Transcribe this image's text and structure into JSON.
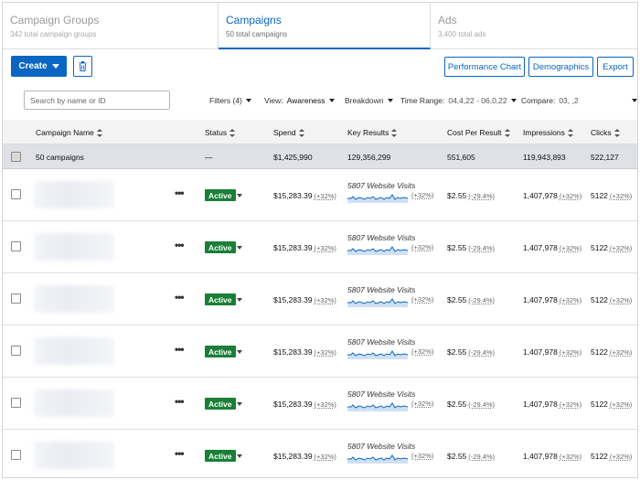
{
  "tabs": [
    {
      "title": "Campaign Groups",
      "subtitle": "342 total campaign groups"
    },
    {
      "title": "Campaigns",
      "subtitle": "50 total campaigns"
    },
    {
      "title": "Ads",
      "subtitle": "3,400 total ads"
    }
  ],
  "toolbar": {
    "create_label": "Create",
    "performance_chart_label": "Performance Chart",
    "demographics_label": "Demographics",
    "export_label": "Export"
  },
  "filters": {
    "search_placeholder": "Search by name or ID",
    "filters_label": "Filters (4)",
    "view_label": "View:",
    "view_value": "Awareness",
    "breakdown_label": "Breakdown",
    "time_range_label": "Time Range:",
    "time_range_value": "04,4,22 - 06,0,22",
    "compare_label": "Compare:",
    "compare_value": "03, ,2"
  },
  "columns": {
    "name": "Campaign Name",
    "status": "Status",
    "spend": "Spend",
    "key_results": "Key Results",
    "cost_per_result": "Cost Per Result",
    "impressions": "Impressions",
    "clicks": "Clicks"
  },
  "totals": {
    "name": "50 campaigns",
    "status": "—",
    "spend": "$1,425,990",
    "key_results": "129,356,299",
    "cost_per_result": "551,605",
    "impressions": "119,943,893",
    "clicks": "522,127"
  },
  "rows": [
    {
      "status": "Active",
      "spend": "$15,283.39",
      "spend_change": "(+32%)",
      "key_results": "5807 Website Visits",
      "key_results_change": "(+32%)",
      "cpr": "$2.55",
      "cpr_change": "(-29.4%)",
      "impressions": "1,407,978",
      "impressions_change": "(+32%)",
      "clicks": "5122",
      "clicks_change": "(+32%)"
    },
    {
      "status": "Active",
      "spend": "$15,283.39",
      "spend_change": "(+32%)",
      "key_results": "5807 Website Visits",
      "key_results_change": "(+32%)",
      "cpr": "$2.55",
      "cpr_change": "(-29.4%)",
      "impressions": "1,407,978",
      "impressions_change": "(+32%)",
      "clicks": "5122",
      "clicks_change": "(+32%)"
    },
    {
      "status": "Active",
      "spend": "$15,283.39",
      "spend_change": "(+32%)",
      "key_results": "5807 Website Visits",
      "key_results_change": "(+32%)",
      "cpr": "$2.55",
      "cpr_change": "(-29.4%)",
      "impressions": "1,407,978",
      "impressions_change": "(+32%)",
      "clicks": "5122",
      "clicks_change": "(+32%)"
    },
    {
      "status": "Active",
      "spend": "$15,283.39",
      "spend_change": "(+32%)",
      "key_results": "5807 Website Visits",
      "key_results_change": "(+32%)",
      "cpr": "$2.55",
      "cpr_change": "(-29.4%)",
      "impressions": "1,407,978",
      "impressions_change": "(+32%)",
      "clicks": "5122",
      "clicks_change": "(+32%)"
    },
    {
      "status": "Active",
      "spend": "$15,283.39",
      "spend_change": "(+32%)",
      "key_results": "5807 Website Visits",
      "key_results_change": "(+32%)",
      "cpr": "$2.55",
      "cpr_change": "(-29.4%)",
      "impressions": "1,407,978",
      "impressions_change": "(+32%)",
      "clicks": "5122",
      "clicks_change": "(+32%)"
    },
    {
      "status": "Active",
      "spend": "$15,283.39",
      "spend_change": "(+32%)",
      "key_results": "5807 Website Visits",
      "key_results_change": "(+32%)",
      "cpr": "$2.55",
      "cpr_change": "(-29.4%)",
      "impressions": "1,407,978",
      "impressions_change": "(+32%)",
      "clicks": "5122",
      "clicks_change": "(+32%)"
    }
  ],
  "colors": {
    "accent": "#0a66c2",
    "active_status": "#1a7f37",
    "sparkline": "#0a66c2"
  },
  "icons": {
    "create_caret": "chevron-down-icon",
    "trash": "trash-icon",
    "sort": "sort-icon",
    "row_menu": "more-horizontal-icon"
  }
}
